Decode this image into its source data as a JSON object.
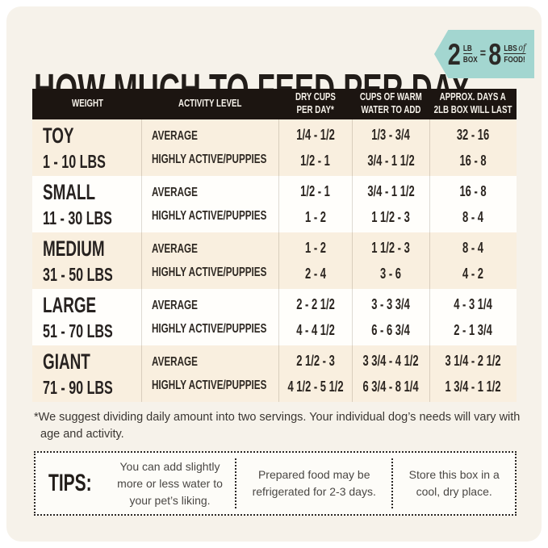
{
  "page_title": "HOW MUCH TO FEED PER DAY",
  "badge": {
    "left_number": "2",
    "left_unit_top": "LB",
    "left_unit_bottom": "BOX",
    "equals": "=",
    "right_number": "8",
    "right_unit_top": "LBS",
    "right_unit_script": "of",
    "right_unit_bottom": "FOOD!",
    "color": "#a3d6d0"
  },
  "table": {
    "headers": [
      {
        "lines": [
          "WEIGHT"
        ]
      },
      {
        "lines": [
          "ACTIVITY LEVEL"
        ]
      },
      {
        "lines": [
          "DRY CUPS",
          "PER DAY*"
        ]
      },
      {
        "lines": [
          "CUPS OF WARM",
          "WATER TO ADD"
        ]
      },
      {
        "lines": [
          "APPROX. DAYS A",
          "2LB BOX WILL LAST"
        ]
      }
    ],
    "rows": [
      {
        "weight": "TOY",
        "range": "1 - 10 LBS",
        "activity": [
          "AVERAGE",
          "HIGHLY ACTIVE/PUPPIES"
        ],
        "dry_cups": [
          "1/4 - 1/2",
          "1/2 - 1"
        ],
        "water": [
          "1/3 - 3/4",
          "3/4 - 1 1/2"
        ],
        "days": [
          "32 - 16",
          "16 - 8"
        ]
      },
      {
        "weight": "SMALL",
        "range": "11 - 30 LBS",
        "activity": [
          "AVERAGE",
          "HIGHLY ACTIVE/PUPPIES"
        ],
        "dry_cups": [
          "1/2 - 1",
          "1 - 2"
        ],
        "water": [
          "3/4 - 1 1/2",
          "1 1/2 - 3"
        ],
        "days": [
          "16 - 8",
          "8 - 4"
        ]
      },
      {
        "weight": "MEDIUM",
        "range": "31 - 50 LBS",
        "activity": [
          "AVERAGE",
          "HIGHLY ACTIVE/PUPPIES"
        ],
        "dry_cups": [
          "1 - 2",
          "2 - 4"
        ],
        "water": [
          "1 1/2 - 3",
          "3 - 6"
        ],
        "days": [
          "8 - 4",
          "4 - 2"
        ]
      },
      {
        "weight": "LARGE",
        "range": "51 - 70 LBS",
        "activity": [
          "AVERAGE",
          "HIGHLY ACTIVE/PUPPIES"
        ],
        "dry_cups": [
          "2 - 2 1/2",
          "4 - 4 1/2"
        ],
        "water": [
          "3 - 3 3/4",
          "6 - 6 3/4"
        ],
        "days": [
          "4 - 3 1/4",
          "2 - 1 3/4"
        ]
      },
      {
        "weight": "GIANT",
        "range": "71 - 90 LBS",
        "activity": [
          "AVERAGE",
          "HIGHLY ACTIVE/PUPPIES"
        ],
        "dry_cups": [
          "2 1/2 - 3",
          "4 1/2 - 5 1/2"
        ],
        "water": [
          "3 3/4 - 4 1/2",
          "6 3/4 - 8 1/4"
        ],
        "days": [
          "3 1/4 - 2 1/2",
          "1 3/4 - 1 1/2"
        ]
      }
    ]
  },
  "footnote": {
    "text": "*We suggest dividing daily amount into two servings. Your individual dog’s needs will vary with age and activity."
  },
  "tips": {
    "label": "TIPS:",
    "items": [
      "You can add slightly more or less water to your pet’s liking.",
      "Prepared food may be refrigerated for 2-3 days.",
      "Store this box in a cool, dry place."
    ]
  },
  "chart_data": {
    "type": "table",
    "title": "HOW MUCH TO FEED PER DAY",
    "note": "2 LB BOX = 8 LBS of FOOD!",
    "columns": [
      "WEIGHT",
      "ACTIVITY LEVEL",
      "DRY CUPS PER DAY*",
      "CUPS OF WARM WATER TO ADD",
      "APPROX. DAYS A 2LB BOX WILL LAST"
    ],
    "rows": [
      [
        "TOY 1 - 10 LBS",
        "AVERAGE",
        "1/4 - 1/2",
        "1/3 - 3/4",
        "32 - 16"
      ],
      [
        "TOY 1 - 10 LBS",
        "HIGHLY ACTIVE/PUPPIES",
        "1/2 - 1",
        "3/4 - 1 1/2",
        "16 - 8"
      ],
      [
        "SMALL 11 - 30 LBS",
        "AVERAGE",
        "1/2 - 1",
        "3/4 - 1 1/2",
        "16 - 8"
      ],
      [
        "SMALL 11 - 30 LBS",
        "HIGHLY ACTIVE/PUPPIES",
        "1 - 2",
        "1 1/2 - 3",
        "8 - 4"
      ],
      [
        "MEDIUM 31 - 50 LBS",
        "AVERAGE",
        "1 - 2",
        "1 1/2 - 3",
        "8 - 4"
      ],
      [
        "MEDIUM 31 - 50 LBS",
        "HIGHLY ACTIVE/PUPPIES",
        "2 - 4",
        "3 - 6",
        "4 - 2"
      ],
      [
        "LARGE 51 - 70 LBS",
        "AVERAGE",
        "2 - 2 1/2",
        "3 - 3 3/4",
        "4 - 3 1/4"
      ],
      [
        "LARGE 51 - 70 LBS",
        "HIGHLY ACTIVE/PUPPIES",
        "4 - 4 1/2",
        "6 - 6 3/4",
        "2 - 1 3/4"
      ],
      [
        "GIANT 71 - 90 LBS",
        "AVERAGE",
        "2 1/2 - 3",
        "3 3/4 - 4 1/2",
        "3 1/4 - 2 1/2"
      ],
      [
        "GIANT 71 - 90 LBS",
        "HIGHLY ACTIVE/PUPPIES",
        "4 1/2 - 5 1/2",
        "6 3/4 - 8 1/4",
        "1 3/4 - 1 1/2"
      ]
    ]
  }
}
